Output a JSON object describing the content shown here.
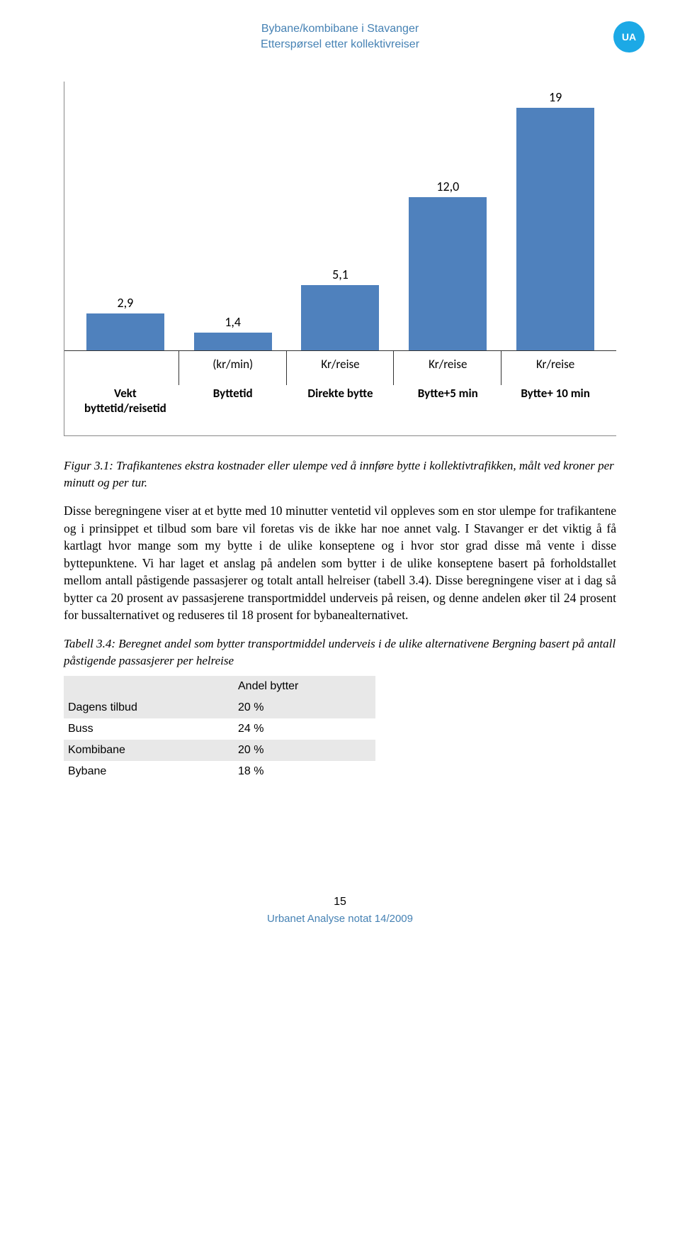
{
  "header": {
    "line1": "Bybane/kombibane i Stavanger",
    "line2": "Etterspørsel etter kollektivreiser",
    "badge": "UA"
  },
  "chart": {
    "type": "bar",
    "bar_color": "#4f81bd",
    "max_value": 20,
    "value_fontsize": 18,
    "label_fontsize": 17,
    "bars": [
      {
        "value": 2.9,
        "value_label": "2,9",
        "unit": "",
        "category_line1": "Vekt",
        "category_line2": "byttetid/reisetid"
      },
      {
        "value": 1.4,
        "value_label": "1,4",
        "unit": "(kr/min)",
        "category_line1": "Byttetid",
        "category_line2": ""
      },
      {
        "value": 5.1,
        "value_label": "5,1",
        "unit": "Kr/reise",
        "category_line1": "Direkte bytte",
        "category_line2": ""
      },
      {
        "value": 12.0,
        "value_label": "12,0",
        "unit": "Kr/reise",
        "category_line1": "Bytte+5 min",
        "category_line2": ""
      },
      {
        "value": 19,
        "value_label": "19",
        "unit": "Kr/reise",
        "category_line1": "Bytte+ 10 min",
        "category_line2": ""
      }
    ]
  },
  "figure_caption": "Figur 3.1: Trafikantenes ekstra kostnader eller ulempe ved å innføre bytte i kollektivtrafikken, målt ved kroner per minutt og per tur.",
  "body_paragraph": "Disse beregningene viser at et bytte med 10 minutter ventetid vil oppleves som en stor ulempe for trafikantene og i prinsippet et tilbud som bare vil foretas vis de ikke har noe annet valg. I Stavanger er det viktig å få kartlagt hvor mange som my bytte i de ulike konseptene og i hvor stor grad disse må vente i disse byttepunktene. Vi har laget et anslag på andelen som bytter i de ulike konseptene basert på forholdstallet mellom antall påstigende passasjerer og totalt antall helreiser (tabell 3.4). Disse beregningene viser at i dag så bytter ca 20 prosent av passasjerene transportmiddel underveis på reisen, og denne andelen øker til 24 prosent for bussalternativet og reduseres til 18 prosent for bybanealternativet.",
  "table_caption": "Tabell 3.4: Beregnet andel som bytter transportmiddel underveis i de ulike alternativene Bergning basert på antall påstigende passasjerer per helreise",
  "table": {
    "header_col2": "Andel bytter",
    "rows": [
      {
        "label": "Dagens tilbud",
        "value": "20 %"
      },
      {
        "label": "Buss",
        "value": "24 %"
      },
      {
        "label": "Kombibane",
        "value": "20 %"
      },
      {
        "label": "Bybane",
        "value": "18 %"
      }
    ]
  },
  "footer": {
    "page_number": "15",
    "note": "Urbanet Analyse notat 14/2009"
  }
}
